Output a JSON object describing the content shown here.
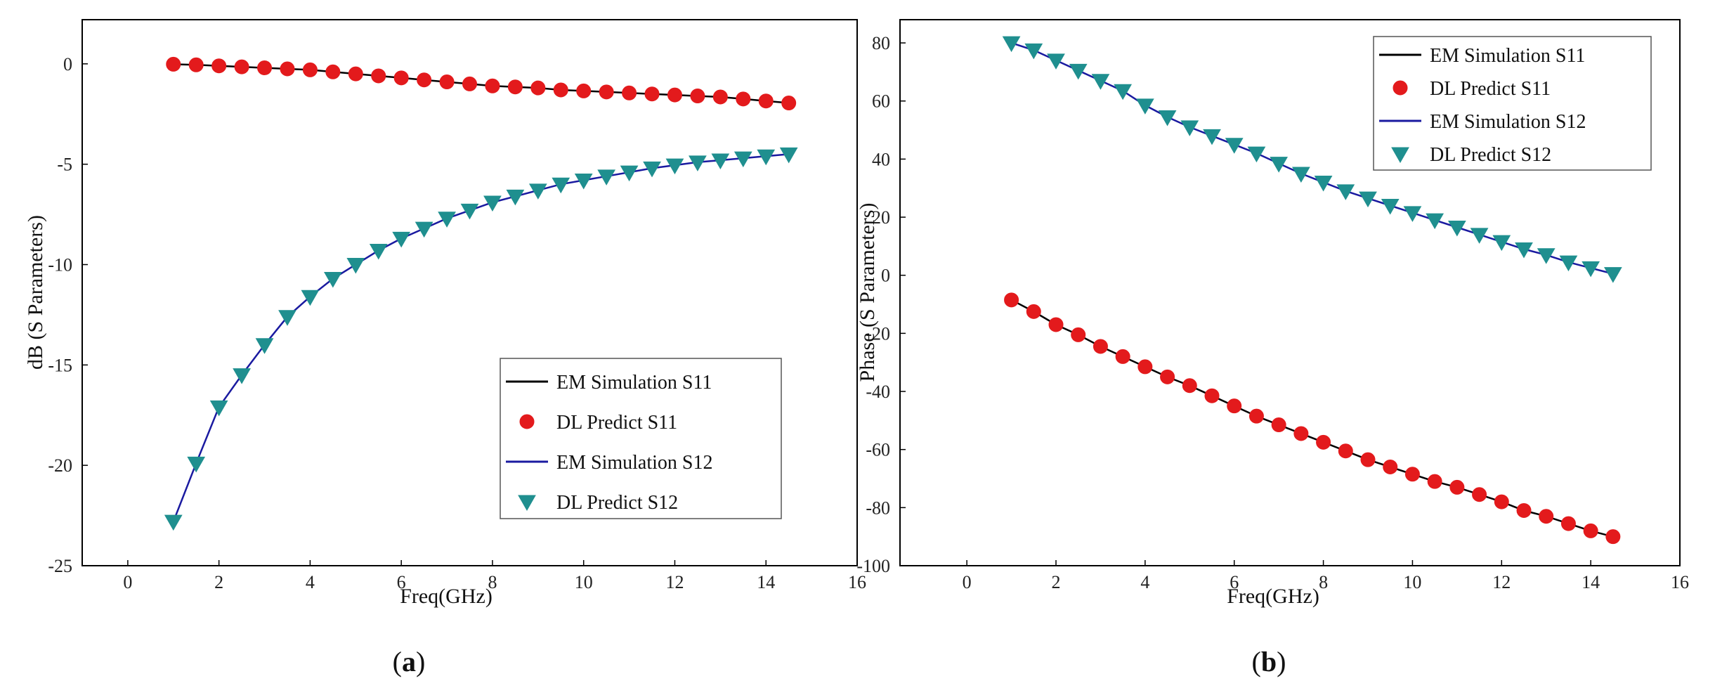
{
  "chart_data": [
    {
      "type": "line",
      "caption_letter": "a",
      "xlabel": "Freq(GHz)",
      "ylabel": "dB (S Parameters)",
      "xlim": [
        -1,
        16
      ],
      "ylim": [
        -25,
        2.2
      ],
      "xticks": [
        0,
        2,
        4,
        6,
        8,
        10,
        12,
        14,
        16
      ],
      "yticks": [
        0,
        -5,
        -10,
        -15,
        -20,
        -25
      ],
      "x": [
        1.0,
        1.5,
        2.0,
        2.5,
        3.0,
        3.5,
        4.0,
        4.5,
        5.0,
        5.5,
        6.0,
        6.5,
        7.0,
        7.5,
        8.0,
        8.5,
        9.0,
        9.5,
        10.0,
        10.5,
        11.0,
        11.5,
        12.0,
        12.5,
        13.0,
        13.5,
        14.0,
        14.5
      ],
      "series": [
        {
          "name": "EM Simulation S11",
          "style": "line",
          "color": "#000000",
          "values": [
            -0.02,
            -0.05,
            -0.1,
            -0.15,
            -0.2,
            -0.25,
            -0.3,
            -0.4,
            -0.5,
            -0.6,
            -0.7,
            -0.8,
            -0.9,
            -1.0,
            -1.1,
            -1.15,
            -1.2,
            -1.3,
            -1.35,
            -1.4,
            -1.45,
            -1.5,
            -1.55,
            -1.6,
            -1.65,
            -1.75,
            -1.85,
            -1.95
          ]
        },
        {
          "name": "DL Predict S11",
          "style": "circle",
          "color": "#e31a1c",
          "values": [
            -0.02,
            -0.05,
            -0.1,
            -0.15,
            -0.2,
            -0.25,
            -0.3,
            -0.4,
            -0.5,
            -0.6,
            -0.7,
            -0.8,
            -0.9,
            -1.0,
            -1.1,
            -1.15,
            -1.2,
            -1.3,
            -1.35,
            -1.4,
            -1.45,
            -1.5,
            -1.55,
            -1.6,
            -1.65,
            -1.75,
            -1.85,
            -1.95
          ]
        },
        {
          "name": "EM Simulation S12",
          "style": "line",
          "color": "#1a1aa0",
          "values": [
            -22.8,
            -19.9,
            -17.1,
            -15.5,
            -14.0,
            -12.6,
            -11.6,
            -10.7,
            -10.0,
            -9.3,
            -8.7,
            -8.2,
            -7.7,
            -7.3,
            -6.9,
            -6.6,
            -6.3,
            -6.0,
            -5.8,
            -5.6,
            -5.4,
            -5.2,
            -5.05,
            -4.9,
            -4.8,
            -4.7,
            -4.6,
            -4.5
          ]
        },
        {
          "name": "DL Predict S12",
          "style": "triangle",
          "color": "#1f8f8f",
          "values": [
            -22.8,
            -19.9,
            -17.1,
            -15.5,
            -14.0,
            -12.6,
            -11.6,
            -10.7,
            -10.0,
            -9.3,
            -8.7,
            -8.2,
            -7.7,
            -7.3,
            -6.9,
            -6.6,
            -6.3,
            -6.0,
            -5.8,
            -5.6,
            -5.4,
            -5.2,
            -5.05,
            -4.9,
            -4.8,
            -4.7,
            -4.6,
            -4.5
          ]
        }
      ],
      "legend_position": "bottom-right"
    },
    {
      "type": "line",
      "caption_letter": "b",
      "xlabel": "Freq(GHz)",
      "ylabel": "Phase (S Parameters)",
      "xlim": [
        -1.5,
        16
      ],
      "ylim": [
        -100,
        88
      ],
      "xticks": [
        0,
        2,
        4,
        6,
        8,
        10,
        12,
        14,
        16
      ],
      "yticks": [
        80,
        60,
        40,
        20,
        0,
        -20,
        -40,
        -60,
        -80,
        -100
      ],
      "x": [
        1.0,
        1.5,
        2.0,
        2.5,
        3.0,
        3.5,
        4.0,
        4.5,
        5.0,
        5.5,
        6.0,
        6.5,
        7.0,
        7.5,
        8.0,
        8.5,
        9.0,
        9.5,
        10.0,
        10.5,
        11.0,
        11.5,
        12.0,
        12.5,
        13.0,
        13.5,
        14.0,
        14.5
      ],
      "series": [
        {
          "name": "EM Simulation S11",
          "style": "line",
          "color": "#000000",
          "values": [
            -8.5,
            -12.5,
            -17.0,
            -20.5,
            -24.5,
            -28.0,
            -31.5,
            -35.0,
            -38.0,
            -41.5,
            -45.0,
            -48.5,
            -51.5,
            -54.5,
            -57.5,
            -60.5,
            -63.5,
            -66.0,
            -68.5,
            -71.0,
            -73.0,
            -75.5,
            -78.0,
            -81.0,
            -83.0,
            -85.5,
            -88.0,
            -90.0
          ]
        },
        {
          "name": "DL Predict S11",
          "style": "circle",
          "color": "#e31a1c",
          "values": [
            -8.5,
            -12.5,
            -17.0,
            -20.5,
            -24.5,
            -28.0,
            -31.5,
            -35.0,
            -38.0,
            -41.5,
            -45.0,
            -48.5,
            -51.5,
            -54.5,
            -57.5,
            -60.5,
            -63.5,
            -66.0,
            -68.5,
            -71.0,
            -73.0,
            -75.5,
            -78.0,
            -81.0,
            -83.0,
            -85.5,
            -88.0,
            -90.0
          ]
        },
        {
          "name": "EM Simulation S12",
          "style": "line",
          "color": "#1a1aa0",
          "values": [
            80.0,
            77.5,
            74.0,
            70.5,
            67.0,
            63.5,
            58.5,
            54.5,
            51.0,
            48.0,
            45.0,
            42.0,
            38.5,
            35.0,
            32.0,
            29.0,
            26.5,
            24.0,
            21.5,
            19.0,
            16.5,
            14.0,
            11.5,
            9.0,
            7.0,
            4.5,
            2.5,
            0.5
          ]
        },
        {
          "name": "DL Predict S12",
          "style": "triangle",
          "color": "#1f8f8f",
          "values": [
            80.0,
            77.5,
            74.0,
            70.5,
            67.0,
            63.5,
            58.5,
            54.5,
            51.0,
            48.0,
            45.0,
            42.0,
            38.5,
            35.0,
            32.0,
            29.0,
            26.5,
            24.0,
            21.5,
            19.0,
            16.5,
            14.0,
            11.5,
            9.0,
            7.0,
            4.5,
            2.5,
            0.5
          ]
        }
      ],
      "legend_position": "top-right"
    }
  ]
}
